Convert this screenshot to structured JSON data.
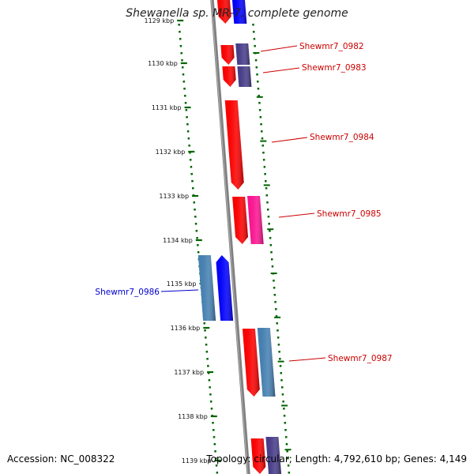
{
  "title": "Shewanella sp. MR-7, complete genome",
  "footer": {
    "accession": "Accession: NC_008322",
    "summary": "Topology: circular; Length: 4,792,610 bp; Genes: 4,149"
  },
  "colors": {
    "red": "#ff0000",
    "blue": "#0000ff",
    "steelblue": "#4682b4",
    "purple": "#483d8b",
    "magenta": "#ff1493",
    "scale": "#006400",
    "axis": "#808080",
    "label_red": "#cc0000",
    "label_blue": "#0000cc"
  },
  "scale_ticks": [
    "1129 kbp",
    "1130 kbp",
    "1131 kbp",
    "1132 kbp",
    "1133 kbp",
    "1134 kbp",
    "1135 kbp",
    "1136 kbp",
    "1137 kbp",
    "1138 kbp",
    "1139 kbp"
  ],
  "gene_labels": [
    {
      "text": "Shewmr7_0982",
      "color": "red"
    },
    {
      "text": "Shewmr7_0983",
      "color": "red"
    },
    {
      "text": "Shewmr7_0984",
      "color": "red"
    },
    {
      "text": "Shewmr7_0985",
      "color": "red"
    },
    {
      "text": "Shewmr7_0986",
      "color": "blue"
    },
    {
      "text": "Shewmr7_0987",
      "color": "red"
    }
  ],
  "features": [
    {
      "track": 1,
      "color": "red",
      "dir": "down"
    },
    {
      "track": 2,
      "color": "blue",
      "dir": "none"
    },
    {
      "track": 1,
      "color": "red",
      "dir": "down"
    },
    {
      "track": 2,
      "color": "purple",
      "dir": "none"
    },
    {
      "track": 1,
      "color": "red",
      "dir": "down"
    },
    {
      "track": 2,
      "color": "purple",
      "dir": "none"
    },
    {
      "track": 1,
      "color": "red",
      "dir": "down"
    },
    {
      "track": 1,
      "color": "red",
      "dir": "down"
    },
    {
      "track": 2,
      "color": "magenta",
      "dir": "none"
    },
    {
      "track": -2,
      "color": "steelblue",
      "dir": "none"
    },
    {
      "track": -1,
      "color": "blue",
      "dir": "up"
    },
    {
      "track": 1,
      "color": "red",
      "dir": "down"
    },
    {
      "track": 2,
      "color": "steelblue",
      "dir": "none"
    },
    {
      "track": 1,
      "color": "red",
      "dir": "down"
    },
    {
      "track": 2,
      "color": "purple",
      "dir": "none"
    }
  ]
}
